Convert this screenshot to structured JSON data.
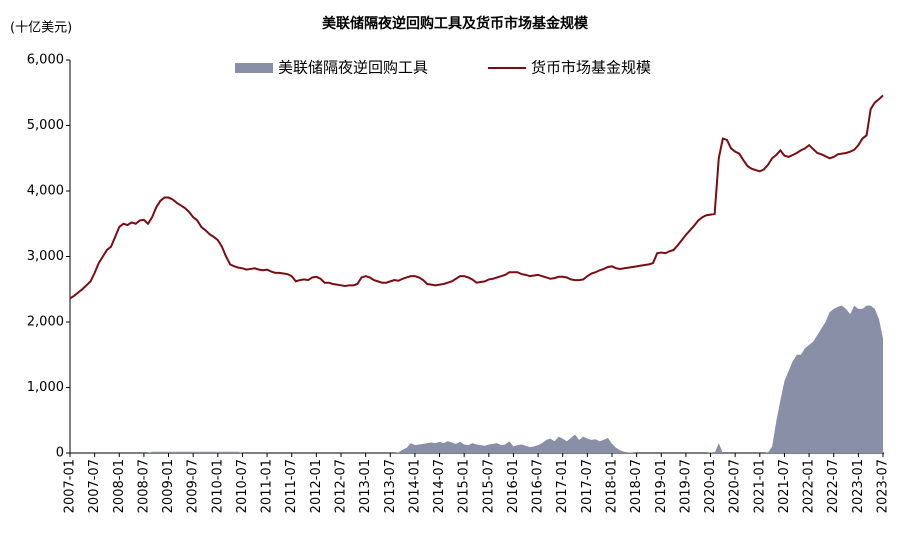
{
  "chart_data": {
    "type": "area-line",
    "title": "美联储隔夜逆回购工具及货币市场基金规模",
    "y_unit_label": "(十亿美元)",
    "legend_position": "top",
    "x": [
      "2007-01",
      "2007-02",
      "2007-03",
      "2007-04",
      "2007-05",
      "2007-06",
      "2007-07",
      "2007-08",
      "2007-09",
      "2007-10",
      "2007-11",
      "2007-12",
      "2008-01",
      "2008-02",
      "2008-03",
      "2008-04",
      "2008-05",
      "2008-06",
      "2008-07",
      "2008-08",
      "2008-09",
      "2008-10",
      "2008-11",
      "2008-12",
      "2009-01",
      "2009-02",
      "2009-03",
      "2009-04",
      "2009-05",
      "2009-06",
      "2009-07",
      "2009-08",
      "2009-09",
      "2009-10",
      "2009-11",
      "2009-12",
      "2010-01",
      "2010-02",
      "2010-03",
      "2010-04",
      "2010-05",
      "2010-06",
      "2010-07",
      "2010-08",
      "2010-09",
      "2010-10",
      "2010-11",
      "2010-12",
      "2011-01",
      "2011-02",
      "2011-03",
      "2011-04",
      "2011-05",
      "2011-06",
      "2011-07",
      "2011-08",
      "2011-09",
      "2011-10",
      "2011-11",
      "2011-12",
      "2012-01",
      "2012-02",
      "2012-03",
      "2012-04",
      "2012-05",
      "2012-06",
      "2012-07",
      "2012-08",
      "2012-09",
      "2012-10",
      "2012-11",
      "2012-12",
      "2013-01",
      "2013-02",
      "2013-03",
      "2013-04",
      "2013-05",
      "2013-06",
      "2013-07",
      "2013-08",
      "2013-09",
      "2013-10",
      "2013-11",
      "2013-12",
      "2014-01",
      "2014-02",
      "2014-03",
      "2014-04",
      "2014-05",
      "2014-06",
      "2014-07",
      "2014-08",
      "2014-09",
      "2014-10",
      "2014-11",
      "2014-12",
      "2015-01",
      "2015-02",
      "2015-03",
      "2015-04",
      "2015-05",
      "2015-06",
      "2015-07",
      "2015-08",
      "2015-09",
      "2015-10",
      "2015-11",
      "2015-12",
      "2016-01",
      "2016-02",
      "2016-03",
      "2016-04",
      "2016-05",
      "2016-06",
      "2016-07",
      "2016-08",
      "2016-09",
      "2016-10",
      "2016-11",
      "2016-12",
      "2017-01",
      "2017-02",
      "2017-03",
      "2017-04",
      "2017-05",
      "2017-06",
      "2017-07",
      "2017-08",
      "2017-09",
      "2017-10",
      "2017-11",
      "2017-12",
      "2018-01",
      "2018-02",
      "2018-03",
      "2018-04",
      "2018-05",
      "2018-06",
      "2018-07",
      "2018-08",
      "2018-09",
      "2018-10",
      "2018-11",
      "2018-12",
      "2019-01",
      "2019-02",
      "2019-03",
      "2019-04",
      "2019-05",
      "2019-06",
      "2019-07",
      "2019-08",
      "2019-09",
      "2019-10",
      "2019-11",
      "2019-12",
      "2020-01",
      "2020-02",
      "2020-03",
      "2020-04",
      "2020-05",
      "2020-06",
      "2020-07",
      "2020-08",
      "2020-09",
      "2020-10",
      "2020-11",
      "2020-12",
      "2021-01",
      "2021-02",
      "2021-03",
      "2021-04",
      "2021-05",
      "2021-06",
      "2021-07",
      "2021-08",
      "2021-09",
      "2021-10",
      "2021-11",
      "2021-12",
      "2022-01",
      "2022-02",
      "2022-03",
      "2022-04",
      "2022-05",
      "2022-06",
      "2022-07",
      "2022-08",
      "2022-09",
      "2022-10",
      "2022-11",
      "2022-12",
      "2023-01",
      "2023-02",
      "2023-03",
      "2023-04",
      "2023-05",
      "2023-06",
      "2023-07"
    ],
    "xticks": [
      "2007-01",
      "2007-07",
      "2008-01",
      "2008-07",
      "2009-01",
      "2009-07",
      "2010-01",
      "2010-07",
      "2011-01",
      "2011-07",
      "2012-01",
      "2012-07",
      "2013-01",
      "2013-07",
      "2014-01",
      "2014-07",
      "2015-01",
      "2015-07",
      "2016-01",
      "2016-07",
      "2017-01",
      "2017-07",
      "2018-01",
      "2018-07",
      "2019-01",
      "2019-07",
      "2020-01",
      "2020-07",
      "2021-01",
      "2021-07",
      "2022-01",
      "2022-07",
      "2023-01",
      "2023-07"
    ],
    "ylim": [
      0,
      6000
    ],
    "yticks": [
      0,
      {
        "value": 1000,
        "label": "1,000"
      },
      {
        "value": 2000,
        "label": "2,000"
      },
      {
        "value": 3000,
        "label": "3,000"
      },
      {
        "value": 4000,
        "label": "4,000"
      },
      {
        "value": 5000,
        "label": "5,000"
      },
      {
        "value": 6000,
        "label": "6,000"
      }
    ],
    "series": [
      {
        "name": "美联储隔夜逆回购工具",
        "kind": "area",
        "color": "#8a8fa8",
        "values": [
          0,
          0,
          0,
          0,
          0,
          0,
          0,
          0,
          0,
          0,
          0,
          0,
          0,
          0,
          0,
          0,
          0,
          0,
          0,
          0,
          20,
          20,
          20,
          20,
          20,
          20,
          20,
          20,
          20,
          20,
          20,
          20,
          20,
          20,
          20,
          20,
          20,
          20,
          20,
          20,
          20,
          20,
          0,
          0,
          0,
          0,
          0,
          0,
          0,
          0,
          0,
          0,
          0,
          0,
          0,
          0,
          0,
          0,
          0,
          0,
          0,
          0,
          0,
          0,
          0,
          0,
          0,
          0,
          0,
          0,
          0,
          0,
          0,
          0,
          0,
          0,
          0,
          0,
          0,
          0,
          10,
          50,
          80,
          150,
          120,
          130,
          140,
          150,
          160,
          150,
          170,
          150,
          180,
          160,
          140,
          170,
          130,
          120,
          150,
          130,
          120,
          110,
          130,
          140,
          150,
          120,
          130,
          180,
          100,
          120,
          130,
          110,
          90,
          100,
          120,
          150,
          200,
          220,
          180,
          250,
          220,
          180,
          230,
          280,
          200,
          250,
          220,
          200,
          210,
          180,
          200,
          230,
          140,
          80,
          40,
          20,
          10,
          5,
          0,
          0,
          0,
          0,
          0,
          0,
          0,
          0,
          0,
          0,
          0,
          0,
          0,
          0,
          0,
          0,
          0,
          0,
          10,
          0,
          150,
          0,
          0,
          0,
          0,
          0,
          0,
          0,
          0,
          0,
          0,
          0,
          5,
          100,
          480,
          800,
          1100,
          1250,
          1400,
          1500,
          1500,
          1600,
          1650,
          1700,
          1800,
          1900,
          2000,
          2150,
          2200,
          2230,
          2250,
          2200,
          2120,
          2250,
          2200,
          2200,
          2250,
          2250,
          2200,
          2050,
          1750
        ]
      },
      {
        "name": "货币市场基金规模",
        "kind": "line",
        "color": "#7b0d12",
        "values": [
          2360,
          2400,
          2450,
          2500,
          2560,
          2620,
          2750,
          2900,
          3000,
          3100,
          3150,
          3300,
          3450,
          3500,
          3480,
          3520,
          3500,
          3550,
          3560,
          3500,
          3600,
          3750,
          3850,
          3900,
          3900,
          3870,
          3820,
          3780,
          3740,
          3680,
          3600,
          3550,
          3450,
          3400,
          3340,
          3300,
          3250,
          3150,
          3000,
          2880,
          2850,
          2830,
          2820,
          2800,
          2810,
          2820,
          2800,
          2790,
          2800,
          2770,
          2750,
          2750,
          2740,
          2730,
          2700,
          2620,
          2640,
          2650,
          2640,
          2680,
          2690,
          2660,
          2600,
          2600,
          2580,
          2570,
          2560,
          2550,
          2560,
          2560,
          2580,
          2680,
          2700,
          2680,
          2640,
          2620,
          2600,
          2600,
          2620,
          2640,
          2630,
          2660,
          2680,
          2700,
          2700,
          2680,
          2640,
          2580,
          2570,
          2560,
          2570,
          2580,
          2600,
          2620,
          2660,
          2700,
          2700,
          2680,
          2650,
          2600,
          2610,
          2620,
          2650,
          2660,
          2680,
          2700,
          2720,
          2760,
          2760,
          2760,
          2730,
          2720,
          2700,
          2710,
          2720,
          2700,
          2680,
          2660,
          2670,
          2690,
          2690,
          2680,
          2650,
          2640,
          2640,
          2650,
          2700,
          2740,
          2760,
          2790,
          2810,
          2840,
          2850,
          2820,
          2810,
          2820,
          2830,
          2840,
          2850,
          2860,
          2870,
          2880,
          2900,
          3050,
          3060,
          3050,
          3080,
          3100,
          3170,
          3250,
          3330,
          3400,
          3470,
          3550,
          3600,
          3630,
          3640,
          3650,
          4500,
          4800,
          4780,
          4650,
          4600,
          4570,
          4470,
          4380,
          4340,
          4320,
          4300,
          4330,
          4400,
          4500,
          4550,
          4620,
          4540,
          4520,
          4550,
          4580,
          4620,
          4650,
          4700,
          4640,
          4580,
          4560,
          4530,
          4500,
          4520,
          4560,
          4570,
          4580,
          4600,
          4630,
          4700,
          4800,
          4850,
          5250,
          5350,
          5400,
          5460
        ]
      }
    ]
  }
}
